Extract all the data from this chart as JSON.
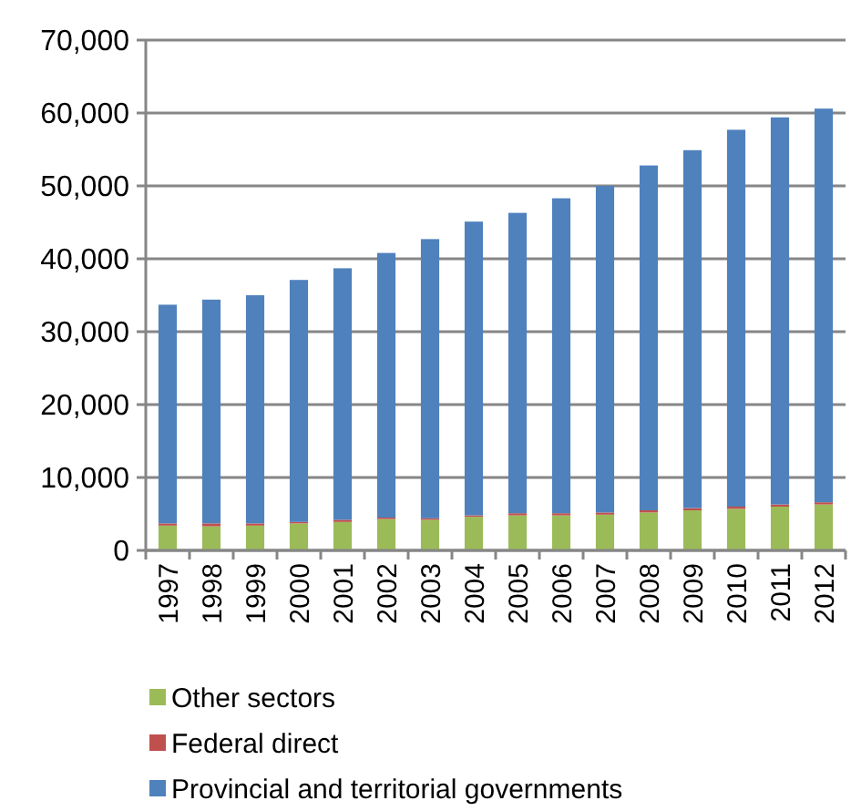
{
  "chart_data": {
    "type": "bar",
    "stacked": true,
    "categories": [
      "1997",
      "1998",
      "1999",
      "2000",
      "2001",
      "2002",
      "2003",
      "2004",
      "2005",
      "2006",
      "2007",
      "2008",
      "2009",
      "2010",
      "2011",
      "2012"
    ],
    "series": [
      {
        "name": "Other sectors",
        "color": "#9bbb59",
        "values": [
          3400,
          3300,
          3400,
          3700,
          3900,
          4300,
          4200,
          4600,
          4800,
          4800,
          4900,
          5200,
          5500,
          5700,
          6000,
          6300
        ]
      },
      {
        "name": "Federal direct",
        "color": "#c0504d",
        "values": [
          300,
          400,
          300,
          200,
          300,
          200,
          200,
          200,
          300,
          300,
          300,
          300,
          300,
          300,
          300,
          300
        ]
      },
      {
        "name": "Provincial and territorial governments",
        "color": "#4f81bd",
        "values": [
          30000,
          30700,
          31300,
          33200,
          34500,
          36300,
          38300,
          40300,
          41200,
          43200,
          44800,
          47300,
          49100,
          51700,
          53100,
          54000
        ]
      }
    ],
    "ylim": [
      0,
      70000
    ],
    "yticks": [
      {
        "value": 0,
        "label": "0"
      },
      {
        "value": 10000,
        "label": "10,000"
      },
      {
        "value": 20000,
        "label": "20,000"
      },
      {
        "value": 30000,
        "label": "30,000"
      },
      {
        "value": 40000,
        "label": "40,000"
      },
      {
        "value": 50000,
        "label": "50,000"
      },
      {
        "value": 60000,
        "label": "60,000"
      },
      {
        "value": 70000,
        "label": "70,000"
      }
    ],
    "grid": "y",
    "legend": "bottom"
  }
}
